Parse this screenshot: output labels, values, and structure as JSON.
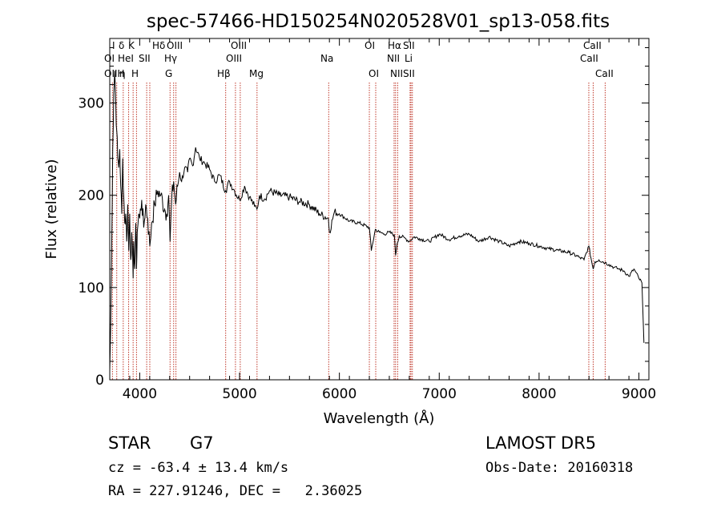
{
  "chart_data": {
    "type": "line",
    "title": "spec-57466-HD150254N020528V01_sp13-058.fits",
    "xlabel": "Wavelength (Å)",
    "ylabel": "Flux (relative)",
    "xlim": [
      3700,
      9100
    ],
    "ylim": [
      0,
      370
    ],
    "xticks": [
      4000,
      5000,
      6000,
      7000,
      8000,
      9000
    ],
    "yticks": [
      0,
      100,
      200,
      300
    ],
    "series": [
      {
        "x": [
          3700,
          3710,
          3720,
          3730,
          3740,
          3750,
          3760,
          3770,
          3780,
          3790,
          3800,
          3810,
          3820,
          3830,
          3840,
          3850,
          3860,
          3870,
          3880,
          3890,
          3900,
          3910,
          3920,
          3934,
          3940,
          3950,
          3960,
          3968,
          3975,
          3990,
          4000,
          4020,
          4040,
          4060,
          4080,
          4101,
          4120,
          4150,
          4180,
          4210,
          4250,
          4270,
          4290,
          4304,
          4320,
          4340,
          4360,
          4380,
          4400,
          4420,
          4450,
          4480,
          4500,
          4530,
          4560,
          4600,
          4650,
          4700,
          4750,
          4800,
          4861,
          4900,
          4950,
          5000,
          5050,
          5100,
          5150,
          5175,
          5200,
          5250,
          5300,
          5400,
          5500,
          5600,
          5700,
          5800,
          5890,
          5900,
          5950,
          6000,
          6100,
          6200,
          6300,
          6320,
          6360,
          6400,
          6450,
          6500,
          6550,
          6563,
          6580,
          6600,
          6650,
          6700,
          6750,
          6800,
          6900,
          7000,
          7100,
          7200,
          7300,
          7400,
          7500,
          7600,
          7700,
          7800,
          7900,
          8000,
          8100,
          8200,
          8300,
          8400,
          8450,
          8498,
          8520,
          8542,
          8560,
          8600,
          8662,
          8700,
          8750,
          8800,
          8850,
          8900,
          8950,
          9000,
          9030,
          9050
        ],
        "y": [
          10,
          60,
          150,
          250,
          310,
          335,
          300,
          270,
          240,
          230,
          250,
          210,
          180,
          240,
          200,
          170,
          180,
          150,
          190,
          140,
          180,
          130,
          160,
          110,
          150,
          120,
          170,
          120,
          160,
          180,
          175,
          195,
          165,
          190,
          175,
          145,
          170,
          190,
          205,
          200,
          185,
          180,
          200,
          150,
          195,
          215,
          190,
          210,
          225,
          215,
          230,
          225,
          240,
          232,
          252,
          240,
          235,
          228,
          215,
          222,
          205,
          215,
          205,
          195,
          210,
          198,
          188,
          185,
          200,
          196,
          205,
          200,
          198,
          193,
          190,
          180,
          175,
          160,
          182,
          180,
          172,
          170,
          165,
          140,
          163,
          160,
          158,
          160,
          157,
          135,
          148,
          156,
          154,
          150,
          155,
          153,
          150,
          158,
          152,
          156,
          158,
          150,
          155,
          150,
          145,
          150,
          148,
          145,
          142,
          140,
          138,
          133,
          130,
          145,
          132,
          120,
          128,
          130,
          127,
          125,
          122,
          120,
          118,
          112,
          120,
          110,
          105,
          40
        ]
      }
    ],
    "lines": [
      {
        "label": "I",
        "x": 3770
      },
      {
        "label": "δ",
        "x": 3835
      },
      {
        "label": "K",
        "x": 3934
      },
      {
        "label": "H",
        "x": 3968
      },
      {
        "label": "Hδ",
        "x": 4101
      },
      {
        "label": "OII",
        "x": 3727
      },
      {
        "label": "HeI",
        "x": 3889
      },
      {
        "label": "SII",
        "x": 4070
      },
      {
        "label": "OIII",
        "x": 4363
      },
      {
        "label": "Hγ",
        "x": 4340
      },
      {
        "label": "G",
        "x": 4304
      },
      {
        "label": "Hβ",
        "x": 4861
      },
      {
        "label": "OIII",
        "x": 4959
      },
      {
        "label": "OIII",
        "x": 5007
      },
      {
        "label": "Mg",
        "x": 5175
      },
      {
        "label": "Na",
        "x": 5893
      },
      {
        "label": "OI",
        "x": 6300
      },
      {
        "label": "OI",
        "x": 6364
      },
      {
        "label": "Hα",
        "x": 6563
      },
      {
        "label": "NII",
        "x": 6548
      },
      {
        "label": "NII",
        "x": 6584
      },
      {
        "label": "SII",
        "x": 6717
      },
      {
        "label": "SII",
        "x": 6731
      },
      {
        "label": "Li",
        "x": 6708
      },
      {
        "label": "CaII",
        "x": 8498
      },
      {
        "label": "CaII",
        "x": 8542
      },
      {
        "label": "CaII",
        "x": 8662
      }
    ],
    "line_label_text": [
      "I",
      "δ",
      "K",
      "Hδ",
      "OIII",
      "OIII",
      "OI",
      "Hα",
      "SII",
      "CaII",
      "OI",
      "HeI",
      "SII",
      "Hγ",
      "OIII",
      "Na",
      "NII",
      "Li",
      "CaII",
      "OIIH",
      "η",
      "H",
      "G",
      "Hβ",
      "Mg",
      "OI",
      "NIISII",
      "CaII"
    ]
  },
  "info": {
    "object_type": "STAR",
    "subclass": "G7",
    "survey": "LAMOST DR5",
    "redshift_text": "cz = -63.4 ± 13.4 km/s",
    "obs_date": "Obs-Date: 20160318",
    "coords": "RA = 227.91246, DEC =   2.36025"
  }
}
